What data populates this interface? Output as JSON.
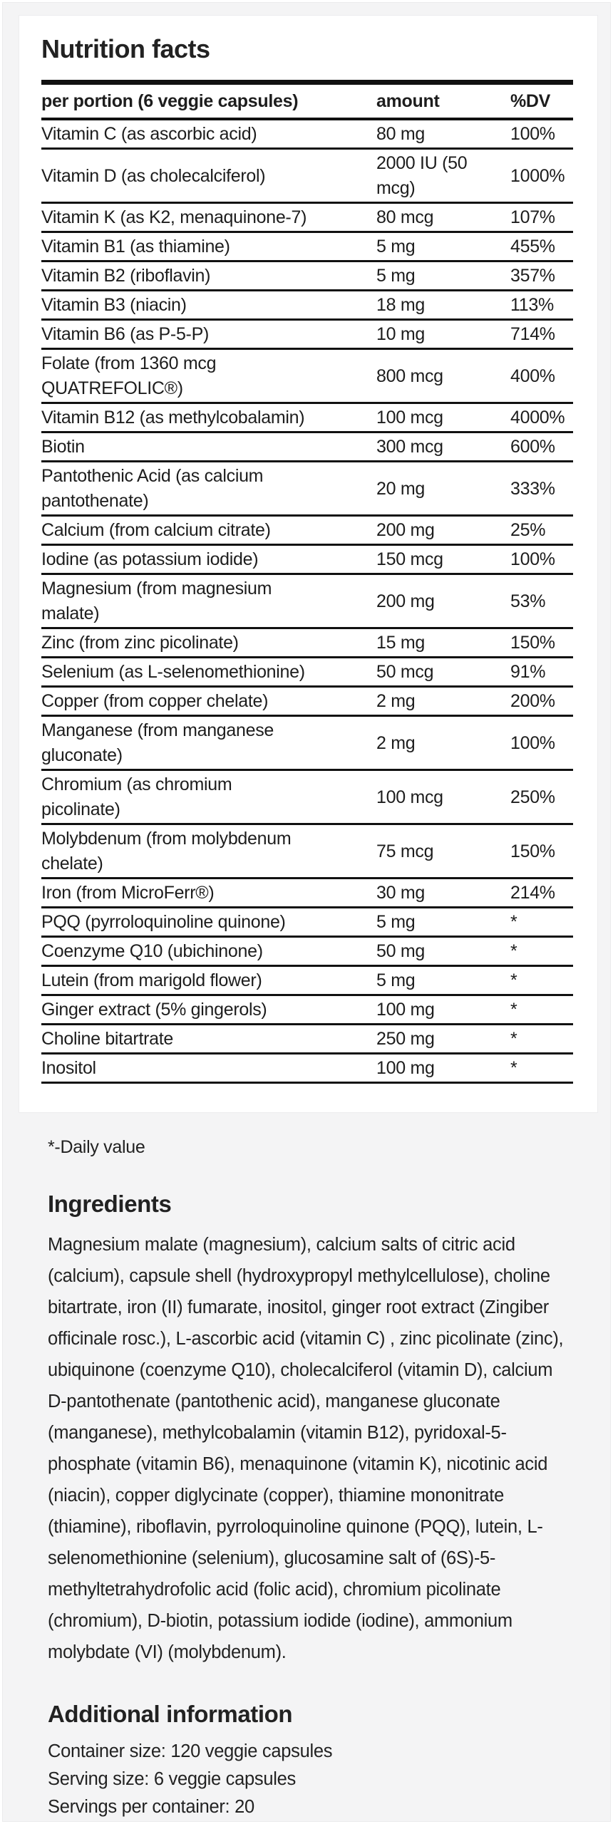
{
  "colors": {
    "page_bg": "#f4f4f5",
    "card_bg": "#ffffff",
    "text": "#222222",
    "table_border": "#111111"
  },
  "card": {
    "title": "Nutrition facts",
    "table": {
      "headers": [
        "per portion (6 veggie capsules)",
        "amount",
        "%DV"
      ],
      "rows": [
        {
          "name": "Vitamin C (as ascorbic acid)",
          "amount": "80 mg",
          "dv": "100%"
        },
        {
          "name": "Vitamin D (as cholecalciferol)",
          "amount": "2000 IU (50\nmcg)",
          "dv": "1000%"
        },
        {
          "name": "Vitamin K (as K2, menaquinone-7)",
          "amount": "80 mcg",
          "dv": "107%"
        },
        {
          "name": "Vitamin B1 (as thiamine)",
          "amount": "5 mg",
          "dv": "455%"
        },
        {
          "name": "Vitamin B2 (riboflavin)",
          "amount": "5 mg",
          "dv": "357%"
        },
        {
          "name": "Vitamin B3 (niacin)",
          "amount": "18 mg",
          "dv": "113%"
        },
        {
          "name": "Vitamin B6 (as P-5-P)",
          "amount": "10 mg",
          "dv": "714%"
        },
        {
          "name": "Folate (from 1360 mcg\nQUATREFOLIC®)",
          "amount": "800 mcg",
          "dv": "400%"
        },
        {
          "name": "Vitamin B12 (as methylcobalamin)",
          "amount": "100 mcg",
          "dv": "4000%"
        },
        {
          "name": "Biotin",
          "amount": "300 mcg",
          "dv": "600%"
        },
        {
          "name": "Pantothenic Acid (as calcium\npantothenate)",
          "amount": "20 mg",
          "dv": "333%"
        },
        {
          "name": "Calcium (from calcium citrate)",
          "amount": "200 mg",
          "dv": "25%"
        },
        {
          "name": "Iodine (as potassium iodide)",
          "amount": "150 mcg",
          "dv": "100%"
        },
        {
          "name": "Magnesium (from magnesium\nmalate)",
          "amount": "200 mg",
          "dv": "53%"
        },
        {
          "name": "Zinc (from zinc picolinate)",
          "amount": "15 mg",
          "dv": "150%"
        },
        {
          "name": "Selenium (as L-selenomethionine)",
          "amount": "50 mcg",
          "dv": "91%"
        },
        {
          "name": "Copper (from copper chelate)",
          "amount": "2 mg",
          "dv": "200%"
        },
        {
          "name": "Manganese (from manganese\ngluconate)",
          "amount": "2 mg",
          "dv": "100%"
        },
        {
          "name": "Chromium (as chromium\npicolinate)",
          "amount": "100 mcg",
          "dv": "250%"
        },
        {
          "name": "Molybdenum (from molybdenum\nchelate)",
          "amount": "75 mcg",
          "dv": "150%"
        },
        {
          "name": "Iron (from MicroFerr®)",
          "amount": "30 mg",
          "dv": "214%"
        },
        {
          "name": "PQQ (pyrroloquinoline quinone)",
          "amount": "5 mg",
          "dv": "*"
        },
        {
          "name": "Coenzyme Q10 (ubichinone)",
          "amount": "50 mg",
          "dv": "*"
        },
        {
          "name": "Lutein (from marigold flower)",
          "amount": "5 mg",
          "dv": "*"
        },
        {
          "name": "Ginger extract (5% gingerols)",
          "amount": "100 mg",
          "dv": "*"
        },
        {
          "name": "Choline bitartrate",
          "amount": "250 mg",
          "dv": "*"
        },
        {
          "name": "Inositol",
          "amount": "100 mg",
          "dv": "*"
        }
      ]
    }
  },
  "footnote": "*-Daily value",
  "ingredients": {
    "heading": "Ingredients",
    "text": "Magnesium malate (magnesium), calcium salts of citric acid (calcium), capsule shell (hydroxypropyl methylcellulose), choline bitartrate, iron (II) fumarate, inositol, ginger root extract (Zingiber officinale rosc.), L-ascorbic acid (vitamin C) , zinc picolinate (zinc), ubiquinone (coenzyme Q10), cholecalciferol (vitamin D), calcium D-pantothenate (pantothenic acid), manganese gluconate (manganese), methylcobalamin (vitamin B12), pyridoxal-5-phosphate (vitamin B6), menaquinone (vitamin K), nicotinic acid (niacin), copper diglycinate (copper), thiamine mononitrate (thiamine), riboflavin, pyrroloquinoline quinone (PQQ), lutein, L-selenomethionine (selenium), glucosamine salt of (6S)-5-methyltetrahydrofolic acid (folic acid), chromium picolinate (chromium), D-biotin, potassium iodide (iodine), ammonium molybdate (VI) (molybdenum)."
  },
  "additional": {
    "heading": "Additional information",
    "lines": [
      "Container size: 120 veggie capsules",
      "Serving size: 6 veggie capsules",
      "Servings per container: 20"
    ]
  }
}
